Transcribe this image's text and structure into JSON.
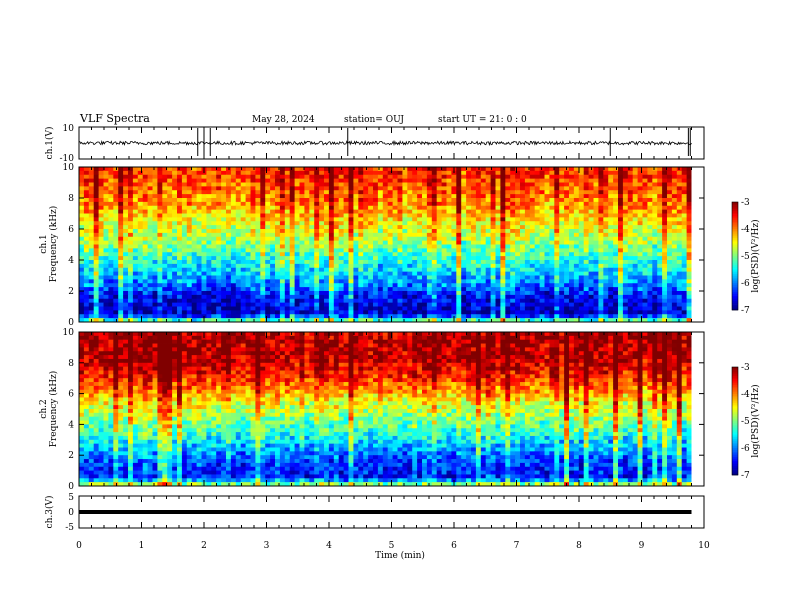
{
  "header": {
    "title": "VLF Spectra",
    "date": "May 28, 2024",
    "station": "station= OUJ",
    "start": "start  UT =   21: 0  : 0"
  },
  "colorbar": {
    "label": "log(PSD)(V²/Hz)",
    "ticks": [
      "-3",
      "-4",
      "-5",
      "-6",
      "-7"
    ]
  },
  "chart_data": [
    {
      "type": "line",
      "panel": "ch1-waveform",
      "ylabel": "ch.1(V)",
      "ylim": [
        -10,
        10
      ],
      "yticks": [
        "10",
        "-10"
      ],
      "xlim": [
        0,
        10
      ],
      "x_range_of_data": [
        0,
        9.8
      ],
      "baseline": 0,
      "spike_times_min": [
        1.9,
        2.0,
        2.1,
        4.3,
        8.5,
        9.75,
        9.78
      ]
    },
    {
      "type": "heatmap",
      "panel": "ch1-spectrogram",
      "ylabel_top": "ch.1",
      "ylabel": "Frequency (kHz)",
      "ylim": [
        0,
        10
      ],
      "yticks": [
        "0",
        "2",
        "4",
        "6",
        "8",
        "10"
      ],
      "xlim": [
        0,
        10
      ],
      "colorscale_range": [
        -7,
        -3
      ],
      "approx_level_by_frequency_khz": [
        {
          "freq": 0,
          "value": -4.8
        },
        {
          "freq": 0.5,
          "value": -6.8
        },
        {
          "freq": 1.5,
          "value": -6.6
        },
        {
          "freq": 2.5,
          "value": -6.0
        },
        {
          "freq": 3.5,
          "value": -5.6
        },
        {
          "freq": 4.5,
          "value": -5.2
        },
        {
          "freq": 5.5,
          "value": -4.8
        },
        {
          "freq": 6.5,
          "value": -4.5
        },
        {
          "freq": 7.5,
          "value": -4.1
        },
        {
          "freq": 8.5,
          "value": -3.9
        },
        {
          "freq": 9.5,
          "value": -3.7
        }
      ]
    },
    {
      "type": "heatmap",
      "panel": "ch2-spectrogram",
      "ylabel_top": "ch.2",
      "ylabel": "Frequency (kHz)",
      "ylim": [
        0,
        10
      ],
      "yticks": [
        "0",
        "2",
        "4",
        "6",
        "8",
        "10"
      ],
      "xlim": [
        0,
        10
      ],
      "colorscale_range": [
        -7,
        -3
      ],
      "approx_level_by_frequency_khz": [
        {
          "freq": 0,
          "value": -4.5
        },
        {
          "freq": 0.5,
          "value": -6.4
        },
        {
          "freq": 1.5,
          "value": -6.3
        },
        {
          "freq": 2.5,
          "value": -5.8
        },
        {
          "freq": 3.5,
          "value": -5.3
        },
        {
          "freq": 4.5,
          "value": -4.9
        },
        {
          "freq": 5.5,
          "value": -4.5
        },
        {
          "freq": 6.5,
          "value": -3.9
        },
        {
          "freq": 7.5,
          "value": -3.4
        },
        {
          "freq": 8.5,
          "value": -3.2
        },
        {
          "freq": 9.5,
          "value": -3.2
        }
      ]
    },
    {
      "type": "line",
      "panel": "ch3-waveform",
      "ylabel": "ch.3(V)",
      "ylim": [
        -5,
        5
      ],
      "yticks": [
        "5",
        "0",
        "-5"
      ],
      "xlim": [
        0,
        10
      ],
      "x_range_of_data": [
        0,
        9.8
      ],
      "baseline": 0
    }
  ],
  "xaxis": {
    "label": "Time (min)",
    "ticks": [
      "0",
      "1",
      "2",
      "3",
      "4",
      "5",
      "6",
      "7",
      "8",
      "9",
      "10"
    ]
  },
  "colors": {
    "axes": "#000000",
    "trace": "#000000"
  }
}
